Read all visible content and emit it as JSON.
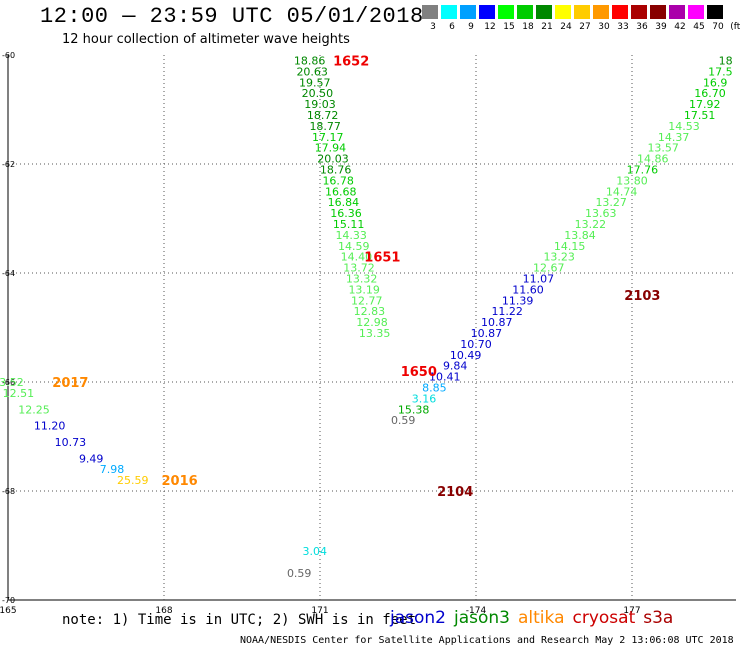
{
  "header": {
    "title": "12:00 — 23:59 UTC 05/01/2018",
    "subtitle": "12 hour collection of altimeter wave heights"
  },
  "color_scale": {
    "labels": [
      "3",
      "6",
      "9",
      "12",
      "15",
      "18",
      "21",
      "24",
      "27",
      "30",
      "33",
      "36",
      "39",
      "42",
      "45",
      "70",
      "(ft)"
    ],
    "colors": [
      "#808080",
      "#00ffff",
      "#00a0ff",
      "#0000ff",
      "#00ff00",
      "#00cc00",
      "#008800",
      "#ffff00",
      "#ffcc00",
      "#ff9900",
      "#ff0000",
      "#aa0000",
      "#880000",
      "#aa00aa",
      "#ff00ff",
      "#000000"
    ]
  },
  "legend": {
    "sats": [
      {
        "name": "jason2",
        "color": "#0000cc"
      },
      {
        "name": "jason3",
        "color": "#008800"
      },
      {
        "name": "altika",
        "color": "#ff8800"
      },
      {
        "name": "cryosat",
        "color": "#cc0000"
      },
      {
        "name": "s3a",
        "color": "#aa0000"
      }
    ]
  },
  "note": "note: 1) Time is in UTC; 2) SWH is in feet",
  "footer": "NOAA/NESDIS Center for Satellite Applications and Research   May  2 13:06:08 UTC 2018",
  "chart_data": {
    "type": "scatter",
    "title": "12:00 — 23:59 UTC 05/01/2018",
    "subtitle": "12 hour collection of altimeter wave heights",
    "x_ticks": [
      "165",
      "168",
      "171",
      "-174",
      "177"
    ],
    "y_ticks": [
      "-60",
      "-62",
      "-64",
      "-66",
      "-68",
      "-70"
    ],
    "pass_labels": [
      {
        "text": "1652",
        "lon": 171.6,
        "lat": -60.1,
        "color": "#ee0000"
      },
      {
        "text": "1651",
        "lon": 172.2,
        "lat": -63.7,
        "color": "#ee0000"
      },
      {
        "text": "1650",
        "lon": 172.9,
        "lat": -65.8,
        "color": "#ee0000"
      },
      {
        "text": "2017",
        "lon": 166.2,
        "lat": -66.0,
        "color": "#ff8800"
      },
      {
        "text": "2016",
        "lon": 168.3,
        "lat": -67.8,
        "color": "#ff8800"
      },
      {
        "text": "2103",
        "lon": 177.2,
        "lat": -64.4,
        "color": "#880000"
      },
      {
        "text": "2104",
        "lon": 173.6,
        "lat": -68.0,
        "color": "#880000"
      }
    ],
    "series": [
      {
        "points": [
          {
            "lon": 170.8,
            "lat": -60.1,
            "v": "18.86",
            "c": "#008800"
          },
          {
            "lon": 170.85,
            "lat": -60.3,
            "v": "20.63",
            "c": "#008800"
          },
          {
            "lon": 170.9,
            "lat": -60.5,
            "v": "19.57",
            "c": "#008800"
          },
          {
            "lon": 170.95,
            "lat": -60.7,
            "v": "20.50",
            "c": "#008800"
          },
          {
            "lon": 171.0,
            "lat": -60.9,
            "v": "19.03",
            "c": "#008800"
          },
          {
            "lon": 171.05,
            "lat": -61.1,
            "v": "18.72",
            "c": "#008800"
          },
          {
            "lon": 171.1,
            "lat": -61.3,
            "v": "18.77",
            "c": "#008800"
          },
          {
            "lon": 171.15,
            "lat": -61.5,
            "v": "17.17",
            "c": "#00cc00"
          },
          {
            "lon": 171.2,
            "lat": -61.7,
            "v": "17.94",
            "c": "#00cc00"
          },
          {
            "lon": 171.25,
            "lat": -61.9,
            "v": "20.03",
            "c": "#008800"
          },
          {
            "lon": 171.3,
            "lat": -62.1,
            "v": "18.76",
            "c": "#008800"
          },
          {
            "lon": 171.35,
            "lat": -62.3,
            "v": "16.78",
            "c": "#00cc00"
          },
          {
            "lon": 171.4,
            "lat": -62.5,
            "v": "16.68",
            "c": "#00cc00"
          },
          {
            "lon": 171.45,
            "lat": -62.7,
            "v": "16.84",
            "c": "#00cc00"
          },
          {
            "lon": 171.5,
            "lat": -62.9,
            "v": "16.36",
            "c": "#00cc00"
          },
          {
            "lon": 171.55,
            "lat": -63.1,
            "v": "15.11",
            "c": "#00cc00"
          },
          {
            "lon": 171.6,
            "lat": -63.3,
            "v": "14.33",
            "c": "#55ee55"
          },
          {
            "lon": 171.65,
            "lat": -63.5,
            "v": "14.59",
            "c": "#55ee55"
          },
          {
            "lon": 171.7,
            "lat": -63.7,
            "v": "14.40",
            "c": "#55ee55"
          },
          {
            "lon": 171.75,
            "lat": -63.9,
            "v": "13.72",
            "c": "#55ee55"
          },
          {
            "lon": 171.8,
            "lat": -64.1,
            "v": "13.32",
            "c": "#55ee55"
          },
          {
            "lon": 171.85,
            "lat": -64.3,
            "v": "13.19",
            "c": "#55ee55"
          },
          {
            "lon": 171.9,
            "lat": -64.5,
            "v": "12.77",
            "c": "#55ee55"
          },
          {
            "lon": 171.95,
            "lat": -64.7,
            "v": "12.83",
            "c": "#55ee55"
          },
          {
            "lon": 172.0,
            "lat": -64.9,
            "v": "12.98",
            "c": "#55ee55"
          },
          {
            "lon": 172.05,
            "lat": -65.1,
            "v": "13.35",
            "c": "#55ee55"
          }
        ]
      },
      {
        "points": [
          {
            "lon": 165.0,
            "lat": -66.0,
            "v": "13.52",
            "c": "#55ee55"
          },
          {
            "lon": 165.2,
            "lat": -66.2,
            "v": "12.51",
            "c": "#55ee55"
          },
          {
            "lon": 165.5,
            "lat": -66.5,
            "v": "12.25",
            "c": "#55ee55"
          },
          {
            "lon": 165.8,
            "lat": -66.8,
            "v": "11.20",
            "c": "#0000cc"
          },
          {
            "lon": 166.2,
            "lat": -67.1,
            "v": "10.73",
            "c": "#0000cc"
          },
          {
            "lon": 166.6,
            "lat": -67.4,
            "v": "9.49",
            "c": "#0000cc"
          },
          {
            "lon": 167.0,
            "lat": -67.6,
            "v": "7.98",
            "c": "#00aaff"
          },
          {
            "lon": 167.4,
            "lat": -67.8,
            "v": "25.59",
            "c": "#ffcc00"
          }
        ]
      },
      {
        "points": [
          {
            "lon": 178.8,
            "lat": -60.1,
            "v": "18",
            "c": "#008800"
          },
          {
            "lon": 178.7,
            "lat": -60.3,
            "v": "17.5",
            "c": "#00cc00"
          },
          {
            "lon": 178.6,
            "lat": -60.5,
            "v": "16.9",
            "c": "#00cc00"
          },
          {
            "lon": 178.5,
            "lat": -60.7,
            "v": "16.70",
            "c": "#00cc00"
          },
          {
            "lon": 178.4,
            "lat": -60.9,
            "v": "17.92",
            "c": "#00cc00"
          },
          {
            "lon": 178.3,
            "lat": -61.1,
            "v": "17.51",
            "c": "#00cc00"
          },
          {
            "lon": 178.0,
            "lat": -61.3,
            "v": "14.53",
            "c": "#55ee55"
          },
          {
            "lon": 177.8,
            "lat": -61.5,
            "v": "14.37",
            "c": "#55ee55"
          },
          {
            "lon": 177.6,
            "lat": -61.7,
            "v": "13.57",
            "c": "#55ee55"
          },
          {
            "lon": 177.4,
            "lat": -61.9,
            "v": "14.86",
            "c": "#55ee55"
          },
          {
            "lon": 177.2,
            "lat": -62.1,
            "v": "17.76",
            "c": "#00cc00"
          },
          {
            "lon": 177.0,
            "lat": -62.3,
            "v": "13.80",
            "c": "#55ee55"
          },
          {
            "lon": 176.8,
            "lat": -62.5,
            "v": "14.74",
            "c": "#55ee55"
          },
          {
            "lon": 176.6,
            "lat": -62.7,
            "v": "13.27",
            "c": "#55ee55"
          },
          {
            "lon": 176.4,
            "lat": -62.9,
            "v": "13.63",
            "c": "#55ee55"
          },
          {
            "lon": 176.2,
            "lat": -63.1,
            "v": "13.22",
            "c": "#55ee55"
          },
          {
            "lon": 176.0,
            "lat": -63.3,
            "v": "13.84",
            "c": "#55ee55"
          },
          {
            "lon": 175.8,
            "lat": -63.5,
            "v": "14.15",
            "c": "#55ee55"
          },
          {
            "lon": 175.6,
            "lat": -63.7,
            "v": "13.23",
            "c": "#55ee55"
          },
          {
            "lon": 175.4,
            "lat": -63.9,
            "v": "12.67",
            "c": "#55ee55"
          },
          {
            "lon": 175.2,
            "lat": -64.1,
            "v": "11.07",
            "c": "#0000cc"
          },
          {
            "lon": 175.0,
            "lat": -64.3,
            "v": "11.60",
            "c": "#0000cc"
          },
          {
            "lon": 174.8,
            "lat": -64.5,
            "v": "11.39",
            "c": "#0000cc"
          },
          {
            "lon": 174.6,
            "lat": -64.7,
            "v": "11.22",
            "c": "#0000cc"
          },
          {
            "lon": 174.4,
            "lat": -64.9,
            "v": "10.87",
            "c": "#0000cc"
          },
          {
            "lon": 174.2,
            "lat": -65.1,
            "v": "10.87",
            "c": "#0000cc"
          },
          {
            "lon": 174.0,
            "lat": -65.3,
            "v": "10.70",
            "c": "#0000cc"
          },
          {
            "lon": 173.8,
            "lat": -65.5,
            "v": "10.49",
            "c": "#0000cc"
          },
          {
            "lon": 173.6,
            "lat": -65.7,
            "v": "9.84",
            "c": "#0000cc"
          },
          {
            "lon": 173.4,
            "lat": -65.9,
            "v": "10.41",
            "c": "#0000cc"
          },
          {
            "lon": 173.2,
            "lat": -66.1,
            "v": "8.85",
            "c": "#00aaff"
          },
          {
            "lon": 173.0,
            "lat": -66.3,
            "v": "3.16",
            "c": "#00dddd"
          },
          {
            "lon": 172.8,
            "lat": -66.5,
            "v": "15.38",
            "c": "#00aa00"
          },
          {
            "lon": 172.6,
            "lat": -66.7,
            "v": "0.59",
            "c": "#666666"
          }
        ]
      },
      {
        "points": [
          {
            "lon": 170.9,
            "lat": -69.1,
            "v": "3.04",
            "c": "#00dddd"
          },
          {
            "lon": 170.6,
            "lat": -69.5,
            "v": "0.59",
            "c": "#666666"
          }
        ]
      }
    ]
  }
}
